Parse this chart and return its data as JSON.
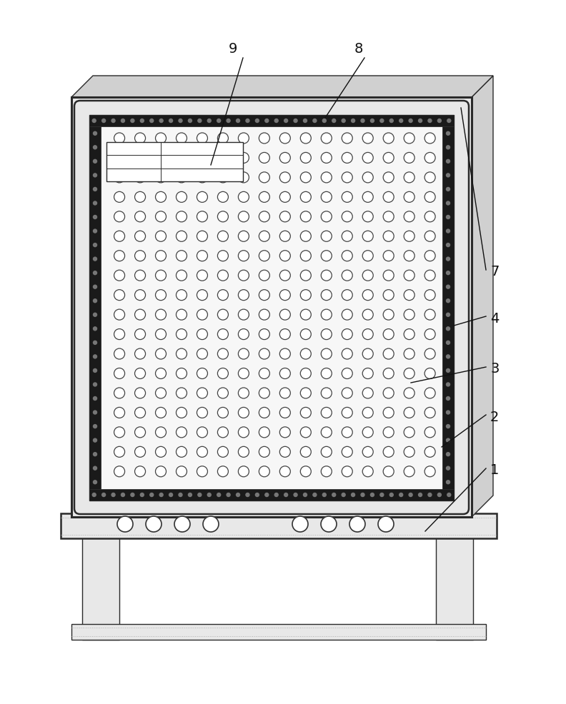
{
  "bg_color": "#ffffff",
  "line_color": "#2a2a2a",
  "gray1": "#e8e8e8",
  "gray2": "#d0d0d0",
  "gray3": "#b0b0b0",
  "black_strip": "#1a1a1a",
  "strip_dot": "#777777",
  "hole_edge": "#444444",
  "hole_face": "#ffffff",
  "font_size": 14
}
